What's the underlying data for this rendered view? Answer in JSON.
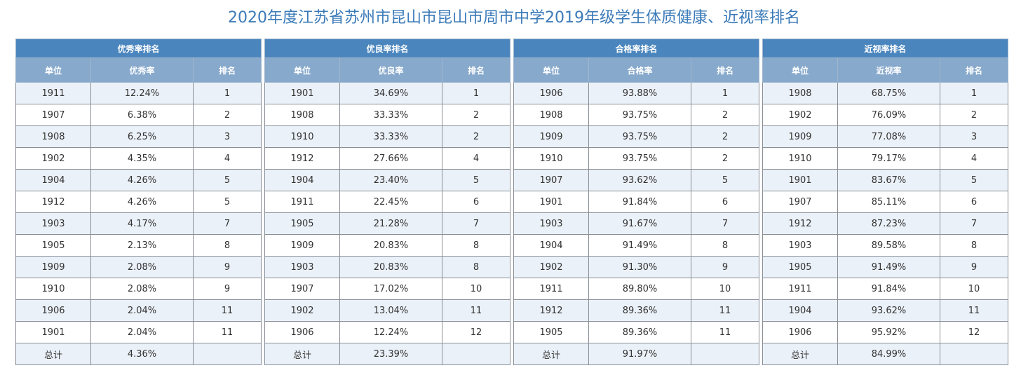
{
  "title": "2020年度江苏省苏州市昆山市昆山市周市中学2019年级学生体质健康、近视率排名",
  "colors": {
    "title": "#3a7ab8",
    "group_header_bg": "#4a85bd",
    "column_header_bg": "#87a9cc",
    "row_alt_bg": "#ebf1f8"
  },
  "tables": [
    {
      "heading": "优秀率排名",
      "columns": [
        "单位",
        "优秀率",
        "排名"
      ],
      "rows": [
        [
          "1911",
          "12.24%",
          "1"
        ],
        [
          "1907",
          "6.38%",
          "2"
        ],
        [
          "1908",
          "6.25%",
          "3"
        ],
        [
          "1902",
          "4.35%",
          "4"
        ],
        [
          "1904",
          "4.26%",
          "5"
        ],
        [
          "1912",
          "4.26%",
          "5"
        ],
        [
          "1903",
          "4.17%",
          "7"
        ],
        [
          "1905",
          "2.13%",
          "8"
        ],
        [
          "1909",
          "2.08%",
          "9"
        ],
        [
          "1910",
          "2.08%",
          "9"
        ],
        [
          "1906",
          "2.04%",
          "11"
        ],
        [
          "1901",
          "2.04%",
          "11"
        ]
      ],
      "total": [
        "总计",
        "4.36%",
        ""
      ]
    },
    {
      "heading": "优良率排名",
      "columns": [
        "单位",
        "优良率",
        "排名"
      ],
      "rows": [
        [
          "1901",
          "34.69%",
          "1"
        ],
        [
          "1908",
          "33.33%",
          "2"
        ],
        [
          "1910",
          "33.33%",
          "2"
        ],
        [
          "1912",
          "27.66%",
          "4"
        ],
        [
          "1904",
          "23.40%",
          "5"
        ],
        [
          "1911",
          "22.45%",
          "6"
        ],
        [
          "1905",
          "21.28%",
          "7"
        ],
        [
          "1909",
          "20.83%",
          "8"
        ],
        [
          "1903",
          "20.83%",
          "8"
        ],
        [
          "1907",
          "17.02%",
          "10"
        ],
        [
          "1902",
          "13.04%",
          "11"
        ],
        [
          "1906",
          "12.24%",
          "12"
        ]
      ],
      "total": [
        "总计",
        "23.39%",
        ""
      ]
    },
    {
      "heading": "合格率排名",
      "columns": [
        "单位",
        "合格率",
        "排名"
      ],
      "rows": [
        [
          "1906",
          "93.88%",
          "1"
        ],
        [
          "1908",
          "93.75%",
          "2"
        ],
        [
          "1909",
          "93.75%",
          "2"
        ],
        [
          "1910",
          "93.75%",
          "2"
        ],
        [
          "1907",
          "93.62%",
          "5"
        ],
        [
          "1901",
          "91.84%",
          "6"
        ],
        [
          "1903",
          "91.67%",
          "7"
        ],
        [
          "1904",
          "91.49%",
          "8"
        ],
        [
          "1902",
          "91.30%",
          "9"
        ],
        [
          "1911",
          "89.80%",
          "10"
        ],
        [
          "1912",
          "89.36%",
          "11"
        ],
        [
          "1905",
          "89.36%",
          "11"
        ]
      ],
      "total": [
        "总计",
        "91.97%",
        ""
      ]
    },
    {
      "heading": "近视率排名",
      "columns": [
        "单位",
        "近视率",
        "排名"
      ],
      "rows": [
        [
          "1908",
          "68.75%",
          "1"
        ],
        [
          "1902",
          "76.09%",
          "2"
        ],
        [
          "1909",
          "77.08%",
          "3"
        ],
        [
          "1910",
          "79.17%",
          "4"
        ],
        [
          "1901",
          "83.67%",
          "5"
        ],
        [
          "1907",
          "85.11%",
          "6"
        ],
        [
          "1912",
          "87.23%",
          "7"
        ],
        [
          "1903",
          "89.58%",
          "8"
        ],
        [
          "1905",
          "91.49%",
          "9"
        ],
        [
          "1911",
          "91.84%",
          "10"
        ],
        [
          "1904",
          "93.62%",
          "11"
        ],
        [
          "1906",
          "95.92%",
          "12"
        ]
      ],
      "total": [
        "总计",
        "84.99%",
        ""
      ]
    }
  ]
}
